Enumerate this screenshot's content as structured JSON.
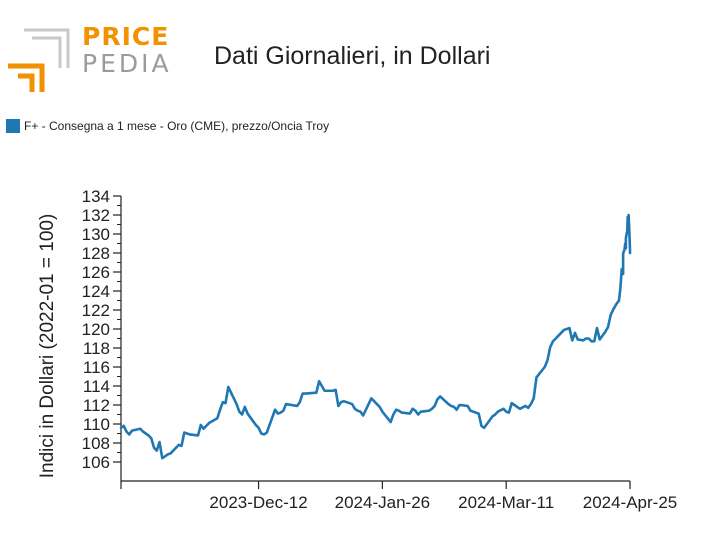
{
  "logo": {
    "word1": "PRICE",
    "word2": "PEDIA",
    "accent": "#f39200",
    "gray": "#9b9b9b"
  },
  "chart_data": {
    "type": "line",
    "title": "Dati Giornalieri, in Dollari",
    "ylabel": "Indici in Dollari (2022-01 = 100)",
    "xlabel": "",
    "ylim": [
      104,
      134
    ],
    "yticks": [
      106,
      108,
      110,
      112,
      114,
      116,
      118,
      120,
      122,
      124,
      126,
      128,
      130,
      132,
      134
    ],
    "xlim": [
      "2023-10-23",
      "2024-04-25"
    ],
    "xticks": [
      {
        "date": "2023-10-23",
        "label": ""
      },
      {
        "date": "2023-12-12",
        "label": "2023-Dec-12"
      },
      {
        "date": "2024-01-26",
        "label": "2024-Jan-26"
      },
      {
        "date": "2024-03-11",
        "label": "2024-Mar-11"
      },
      {
        "date": "2024-04-25",
        "label": "2024-Apr-25"
      }
    ],
    "series": [
      {
        "name": "F+ - Consegna a 1 mese - Oro (CME), prezzo/Oncia Troy",
        "color": "#1f78b4",
        "points": [
          [
            "2023-10-23",
            109.6
          ],
          [
            "2023-10-24",
            109.8
          ],
          [
            "2023-10-25",
            109.2
          ],
          [
            "2023-10-26",
            108.9
          ],
          [
            "2023-10-27",
            109.3
          ],
          [
            "2023-10-30",
            109.5
          ],
          [
            "2023-10-31",
            109.2
          ],
          [
            "2023-11-01",
            109.0
          ],
          [
            "2023-11-02",
            108.8
          ],
          [
            "2023-11-03",
            108.5
          ],
          [
            "2023-11-04",
            107.5
          ],
          [
            "2023-11-05",
            107.2
          ],
          [
            "2023-11-06",
            108.1
          ],
          [
            "2023-11-07",
            106.4
          ],
          [
            "2023-11-08",
            106.6
          ],
          [
            "2023-11-09",
            106.8
          ],
          [
            "2023-11-10",
            106.9
          ],
          [
            "2023-11-13",
            107.8
          ],
          [
            "2023-11-14",
            107.7
          ],
          [
            "2023-11-15",
            109.1
          ],
          [
            "2023-11-16",
            109.0
          ],
          [
            "2023-11-17",
            108.9
          ],
          [
            "2023-11-20",
            108.8
          ],
          [
            "2023-11-21",
            109.9
          ],
          [
            "2023-11-22",
            109.5
          ],
          [
            "2023-11-23",
            109.8
          ],
          [
            "2023-11-24",
            110.1
          ],
          [
            "2023-11-27",
            110.6
          ],
          [
            "2023-11-28",
            111.5
          ],
          [
            "2023-11-29",
            112.3
          ],
          [
            "2023-11-30",
            112.2
          ],
          [
            "2023-12-01",
            113.9
          ],
          [
            "2023-12-04",
            112.1
          ],
          [
            "2023-12-05",
            111.3
          ],
          [
            "2023-12-06",
            111.0
          ],
          [
            "2023-12-07",
            111.8
          ],
          [
            "2023-12-08",
            111.1
          ],
          [
            "2023-12-11",
            109.9
          ],
          [
            "2023-12-12",
            109.6
          ],
          [
            "2023-12-13",
            109.0
          ],
          [
            "2023-12-14",
            108.9
          ],
          [
            "2023-12-15",
            109.1
          ],
          [
            "2023-12-18",
            111.5
          ],
          [
            "2023-12-19",
            111.1
          ],
          [
            "2023-12-20",
            111.2
          ],
          [
            "2023-12-21",
            111.4
          ],
          [
            "2023-12-22",
            112.1
          ],
          [
            "2023-12-26",
            111.9
          ],
          [
            "2023-12-27",
            112.3
          ],
          [
            "2023-12-28",
            113.2
          ],
          [
            "2023-12-29",
            113.2
          ],
          [
            "2024-01-02",
            113.3
          ],
          [
            "2024-01-03",
            114.5
          ],
          [
            "2024-01-04",
            114.0
          ],
          [
            "2024-01-05",
            113.5
          ],
          [
            "2024-01-08",
            113.5
          ],
          [
            "2024-01-09",
            113.6
          ],
          [
            "2024-01-10",
            111.9
          ],
          [
            "2024-01-11",
            112.3
          ],
          [
            "2024-01-12",
            112.4
          ],
          [
            "2024-01-15",
            112.1
          ],
          [
            "2024-01-16",
            111.6
          ],
          [
            "2024-01-17",
            111.4
          ],
          [
            "2024-01-18",
            111.3
          ],
          [
            "2024-01-19",
            110.9
          ],
          [
            "2024-01-22",
            112.7
          ],
          [
            "2024-01-23",
            112.4
          ],
          [
            "2024-01-24",
            112.1
          ],
          [
            "2024-01-25",
            111.8
          ],
          [
            "2024-01-26",
            111.3
          ],
          [
            "2024-01-29",
            110.2
          ],
          [
            "2024-01-30",
            111.0
          ],
          [
            "2024-01-31",
            111.5
          ],
          [
            "2024-02-01",
            111.4
          ],
          [
            "2024-02-02",
            111.2
          ],
          [
            "2024-02-05",
            111.1
          ],
          [
            "2024-02-06",
            111.6
          ],
          [
            "2024-02-07",
            111.4
          ],
          [
            "2024-02-08",
            111.0
          ],
          [
            "2024-02-09",
            111.3
          ],
          [
            "2024-02-12",
            111.4
          ],
          [
            "2024-02-13",
            111.6
          ],
          [
            "2024-02-14",
            111.9
          ],
          [
            "2024-02-15",
            112.6
          ],
          [
            "2024-02-16",
            112.9
          ],
          [
            "2024-02-19",
            112.1
          ],
          [
            "2024-02-20",
            111.9
          ],
          [
            "2024-02-21",
            111.8
          ],
          [
            "2024-02-22",
            111.5
          ],
          [
            "2024-02-23",
            112.0
          ],
          [
            "2024-02-26",
            111.9
          ],
          [
            "2024-02-27",
            111.4
          ],
          [
            "2024-02-28",
            111.3
          ],
          [
            "2024-02-29",
            111.2
          ],
          [
            "2024-03-01",
            111.1
          ],
          [
            "2024-03-02",
            109.8
          ],
          [
            "2024-03-03",
            109.6
          ],
          [
            "2024-03-05",
            110.4
          ],
          [
            "2024-03-06",
            110.8
          ],
          [
            "2024-03-07",
            111.0
          ],
          [
            "2024-03-08",
            111.3
          ],
          [
            "2024-03-10",
            111.6
          ],
          [
            "2024-03-11",
            111.3
          ],
          [
            "2024-03-12",
            111.2
          ],
          [
            "2024-03-13",
            112.2
          ],
          [
            "2024-03-14",
            112.0
          ],
          [
            "2024-03-15",
            111.8
          ],
          [
            "2024-03-16",
            111.6
          ],
          [
            "2024-03-18",
            111.9
          ],
          [
            "2024-03-19",
            111.7
          ],
          [
            "2024-03-20",
            112.1
          ],
          [
            "2024-03-21",
            112.7
          ],
          [
            "2024-03-22",
            114.9
          ],
          [
            "2024-03-25",
            116.0
          ],
          [
            "2024-03-26",
            116.7
          ],
          [
            "2024-03-27",
            118.1
          ],
          [
            "2024-03-28",
            118.7
          ],
          [
            "2024-04-01",
            119.9
          ],
          [
            "2024-04-02",
            120.0
          ],
          [
            "2024-04-03",
            120.1
          ],
          [
            "2024-04-04",
            118.8
          ],
          [
            "2024-04-05",
            119.6
          ],
          [
            "2024-04-06",
            118.9
          ],
          [
            "2024-04-08",
            118.8
          ],
          [
            "2024-04-09",
            119.0
          ],
          [
            "2024-04-10",
            119.0
          ],
          [
            "2024-04-11",
            118.7
          ],
          [
            "2024-04-12",
            118.7
          ],
          [
            "2024-04-13",
            120.1
          ],
          [
            "2024-04-14",
            118.9
          ],
          [
            "2024-04-15",
            119.3
          ],
          [
            "2024-04-16",
            119.7
          ],
          [
            "2024-04-17",
            120.2
          ],
          [
            "2024-04-18",
            121.5
          ],
          [
            "2024-04-19",
            122.1
          ],
          [
            "2024-04-20",
            122.6
          ],
          [
            "2024-04-21",
            123.0
          ],
          [
            "2024-04-22",
            124.3
          ],
          [
            "2024-04-22",
            126.3
          ],
          [
            "2024-04-22",
            125.8
          ],
          [
            "2024-04-23",
            127.9
          ],
          [
            "2024-04-23",
            128.2
          ],
          [
            "2024-04-23",
            128.3
          ],
          [
            "2024-04-23",
            129.0
          ],
          [
            "2024-04-23",
            128.5
          ],
          [
            "2024-04-24",
            129.6
          ],
          [
            "2024-04-24",
            129.8
          ],
          [
            "2024-04-24",
            130.1
          ],
          [
            "2024-04-24",
            130.3
          ],
          [
            "2024-04-24",
            131.8
          ],
          [
            "2024-04-24",
            130.6
          ],
          [
            "2024-04-24",
            131.2
          ],
          [
            "2024-04-25",
            132.0
          ],
          [
            "2024-04-25",
            130.3
          ],
          [
            "2024-04-25",
            128.3
          ],
          [
            "2024-04-25",
            128.0
          ],
          [
            "2024-04-25",
            128.2
          ]
        ]
      }
    ]
  }
}
